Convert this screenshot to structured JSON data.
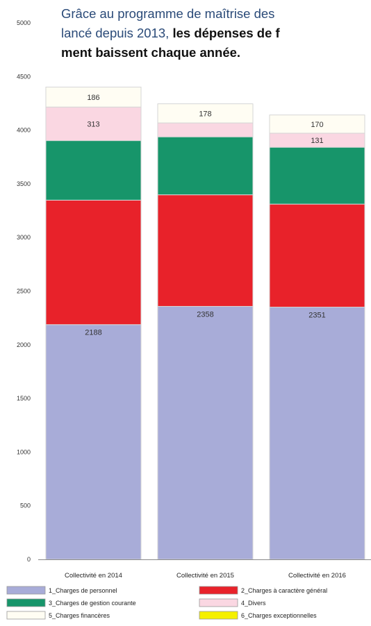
{
  "text": {
    "line1": "Grâce au programme de maîtrise des",
    "line2_plain": "lancé depuis 2013, ",
    "line2_bold": "les dépenses de f",
    "line3_bold": "ment baissent chaque année."
  },
  "chart_data": {
    "type": "bar",
    "stacked": true,
    "categories": [
      "Collectivité en 2014",
      "Collectivité en 2015",
      "Collectivité en 2016"
    ],
    "ylim": [
      0,
      5000
    ],
    "yticks": [
      0,
      500,
      1000,
      1500,
      2000,
      2500,
      3000,
      3500,
      4000,
      4500,
      5000
    ],
    "grid": false,
    "legend_position": "bottom",
    "series": [
      {
        "name": "1_Charges de personnel",
        "color": "#a8acd8",
        "values": [
          2188,
          2358,
          2351
        ],
        "labels": [
          "2188",
          "2358",
          "2351"
        ]
      },
      {
        "name": "2_Charges à caractère général",
        "color": "#e8222a",
        "values": [
          1160,
          1040,
          960
        ],
        "labels": [
          "",
          "",
          ""
        ]
      },
      {
        "name": "3_Charges de gestion courante",
        "color": "#17956a",
        "values": [
          555,
          540,
          530
        ],
        "labels": [
          "",
          "",
          ""
        ]
      },
      {
        "name": "4_Divers",
        "color": "#fad7e2",
        "values": [
          313,
          130,
          131
        ],
        "labels": [
          "313",
          "",
          "131"
        ]
      },
      {
        "name": "5_Charges financères",
        "color": "#fffdf3",
        "values": [
          186,
          178,
          170
        ],
        "labels": [
          "186",
          "178",
          "170"
        ]
      },
      {
        "name": "6_Charges exceptionnelles",
        "color": "#f5f000",
        "values": [
          0,
          0,
          0
        ],
        "labels": [
          "",
          "",
          ""
        ]
      }
    ]
  }
}
